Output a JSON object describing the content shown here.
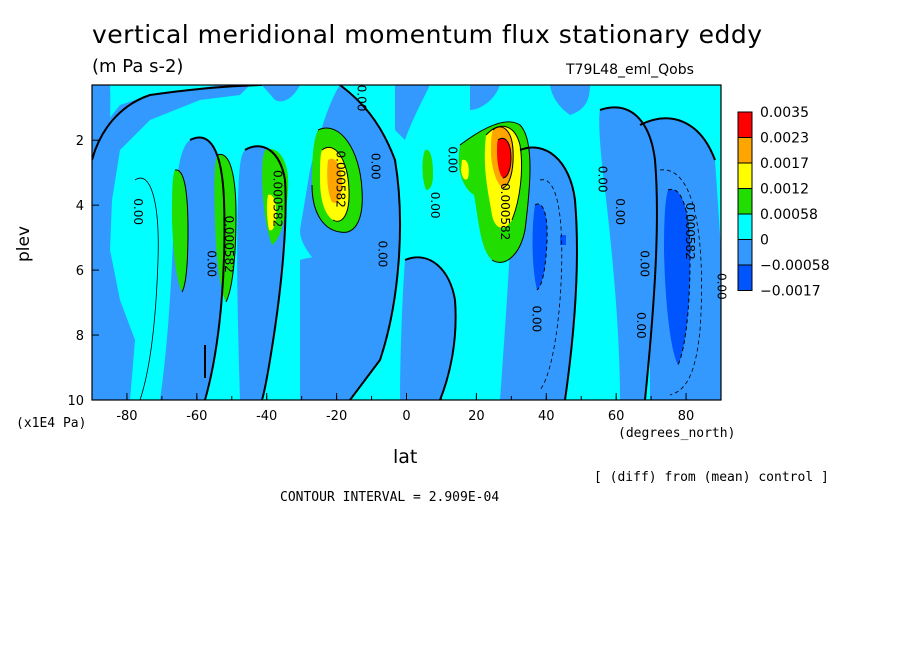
{
  "title": "vertical meridional momentum flux stationary eddy",
  "units": "(m Pa s-2)",
  "run_label": "T79L48_eml_Qobs",
  "note": "[ (diff) from (mean) control ]",
  "contour_interval": "CONTOUR INTERVAL = 2.909E-04",
  "chart_data": {
    "type": "heatmap",
    "xlabel": "lat",
    "xunit": "(degrees_north)",
    "ylabel": "plev",
    "yunit": "(x1E4 Pa)",
    "xlim": [
      -90,
      90
    ],
    "ylim": [
      10,
      0.3
    ],
    "x_ticks": [
      "-80",
      "-60",
      "-40",
      "-20",
      "0",
      "20",
      "40",
      "60",
      "80"
    ],
    "x_tick_values": [
      -80,
      -60,
      -40,
      -20,
      0,
      20,
      40,
      60,
      80
    ],
    "y_ticks": [
      "2",
      "4",
      "6",
      "8",
      "10"
    ],
    "y_tick_values": [
      2,
      4,
      6,
      8,
      10
    ],
    "colorbar": {
      "labels": [
        "0.0035",
        "0.0023",
        "0.0017",
        "0.0012",
        "0.00058",
        "0",
        "−0.00058",
        "−0.0017"
      ],
      "colors": [
        "#ff0000",
        "#ff9900",
        "#ffff00",
        "#33cc00",
        "#00ffff",
        "#3399ff",
        "#0044ff",
        "#ff1010"
      ],
      "bands": [
        "#ff0000",
        "#ffa500",
        "#ffff00",
        "#22dd00",
        "#00ffff",
        "#3399ff",
        "#0055ff"
      ]
    },
    "contour_labels": [
      {
        "text": "0.00",
        "lat": -78,
        "plev": 4.2
      },
      {
        "text": "0.000582",
        "lat": -52,
        "plev": 5.2
      },
      {
        "text": "0.00",
        "lat": -57,
        "plev": 5.8
      },
      {
        "text": "0.000582",
        "lat": -38,
        "plev": 3.8
      },
      {
        "text": "0.000582",
        "lat": -20,
        "plev": 3.2
      },
      {
        "text": "0.00",
        "lat": -10,
        "plev": 2.8
      },
      {
        "text": "0.00",
        "lat": -8,
        "plev": 5.5
      },
      {
        "text": "0.00",
        "lat": -14,
        "plev": 0.7
      },
      {
        "text": "0.00",
        "lat": 7,
        "plev": 4.0
      },
      {
        "text": "0.00",
        "lat": 12,
        "plev": 2.6
      },
      {
        "text": "0.000582",
        "lat": 27,
        "plev": 4.2
      },
      {
        "text": "0.00",
        "lat": 36,
        "plev": 7.5
      },
      {
        "text": "0.00",
        "lat": 55,
        "plev": 3.2
      },
      {
        "text": "0.00",
        "lat": 60,
        "plev": 4.2
      },
      {
        "text": "0.00",
        "lat": 67,
        "plev": 5.8
      },
      {
        "text": "0.00",
        "lat": 66,
        "plev": 7.7
      },
      {
        "text": "0.000582",
        "lat": 80,
        "plev": 4.8
      },
      {
        "text": "0.00",
        "lat": 89,
        "plev": 6.5
      }
    ]
  }
}
